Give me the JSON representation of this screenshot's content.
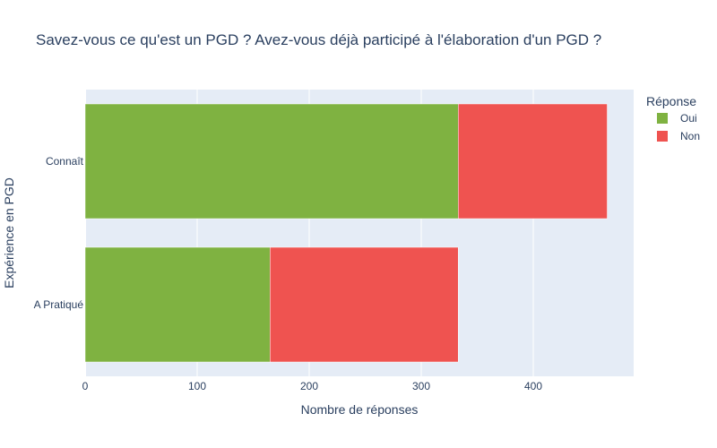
{
  "chart_data": {
    "type": "bar",
    "orientation": "horizontal",
    "barmode": "stack",
    "title": "Savez-vous ce qu'est un PGD ? Avez-vous déjà participé à l'élaboration d'un PGD ?",
    "xlabel": "Nombre de réponses",
    "ylabel": "Expérience en PGD",
    "categories": [
      "Connaît",
      "A Pratiqué"
    ],
    "series": [
      {
        "name": "Oui",
        "color": "#7fb241",
        "values": [
          333,
          165
        ]
      },
      {
        "name": "Non",
        "color": "#ef5350",
        "values": [
          133,
          168
        ]
      }
    ],
    "xlim": [
      0,
      490
    ],
    "xticks": [
      0,
      100,
      200,
      300,
      400
    ],
    "grid": true,
    "legend": {
      "title": "Réponse",
      "position": "top-right"
    },
    "plot_background": "#e5ecf6"
  }
}
